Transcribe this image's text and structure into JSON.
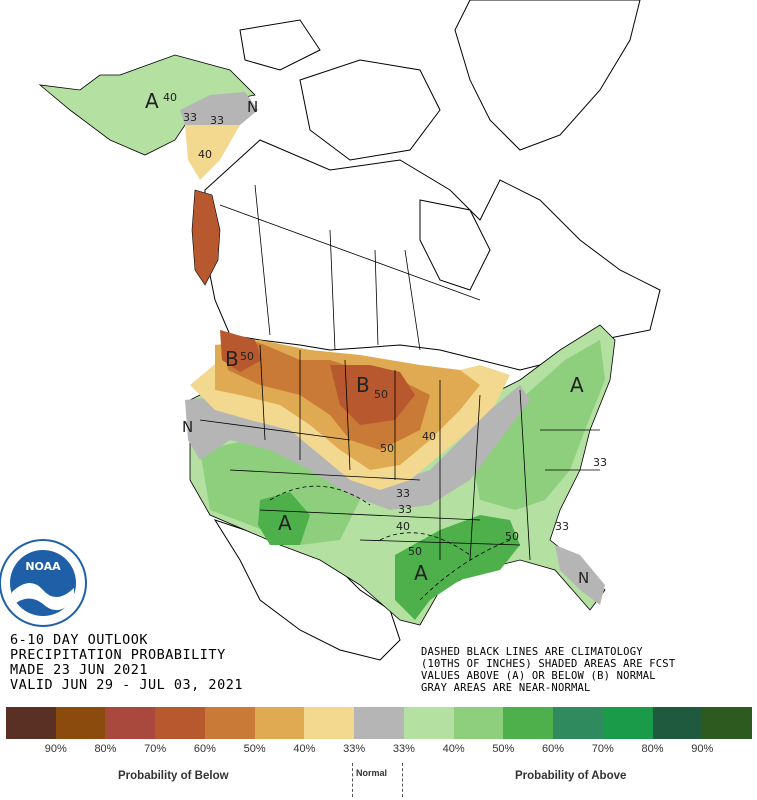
{
  "outlook": {
    "title_line1": "6-10 DAY OUTLOOK",
    "title_line2": "PRECIPITATION PROBABILITY",
    "made": "MADE  23 JUN 2021",
    "valid": "VALID  JUN 29 - JUL 03, 2021"
  },
  "notes": {
    "line1": "DASHED BLACK LINES ARE CLIMATOLOGY",
    "line2": "(10THS OF INCHES) SHADED AREAS ARE FCST",
    "line3": "VALUES ABOVE (A) OR BELOW (B) NORMAL",
    "line4": "GRAY AREAS ARE NEAR-NORMAL"
  },
  "logo": {
    "text": "NOAA",
    "color": "#1f5fa8"
  },
  "map_labels": {
    "a_alaska": "A",
    "v_ak40": "40",
    "v_ak33a": "33",
    "v_ak33b": "33",
    "n_ak": "N",
    "v_ak40b": "40",
    "b_nw": "B",
    "v_nw50": "50",
    "b_plains": "B",
    "v_pl50": "50",
    "v_pl50b": "50",
    "v_pl40": "40",
    "a_ne": "A",
    "n_sw": "N",
    "a_sw": "A",
    "v_c33": "33",
    "v_c33b": "33",
    "v_c40": "40",
    "v_s50": "50",
    "a_south": "A",
    "v_se50": "50",
    "v_se33": "33",
    "v_se33b": "33",
    "n_fl": "N"
  },
  "legend": {
    "swatches": [
      {
        "color": "#5a2f24"
      },
      {
        "color": "#8a4b0c"
      },
      {
        "color": "#a9483c"
      },
      {
        "color": "#b8582f"
      },
      {
        "color": "#c97a36"
      },
      {
        "color": "#dfaa52"
      },
      {
        "color": "#f3d98f"
      },
      {
        "color": "#b5b5b5"
      },
      {
        "color": "#b4e0a2"
      },
      {
        "color": "#8dcf7d"
      },
      {
        "color": "#4db04a"
      },
      {
        "color": "#2f8a5e"
      },
      {
        "color": "#1a9b4a"
      },
      {
        "color": "#1f5a3e"
      },
      {
        "color": "#2d5a1e"
      }
    ],
    "percents": [
      "90%",
      "80%",
      "70%",
      "60%",
      "50%",
      "40%",
      "33%",
      "33%",
      "40%",
      "50%",
      "60%",
      "70%",
      "80%",
      "90%"
    ],
    "below_label": "Probability of Below",
    "normal_label": "Normal",
    "above_label": "Probability of Above"
  },
  "colors": {
    "below_dark": "#b8582f",
    "below_mid": "#dfaa52",
    "below_light": "#f3d98f",
    "normal": "#b5b5b5",
    "above_light": "#b4e0a2",
    "above_mid": "#8dcf7d",
    "above_dark": "#4db04a"
  }
}
